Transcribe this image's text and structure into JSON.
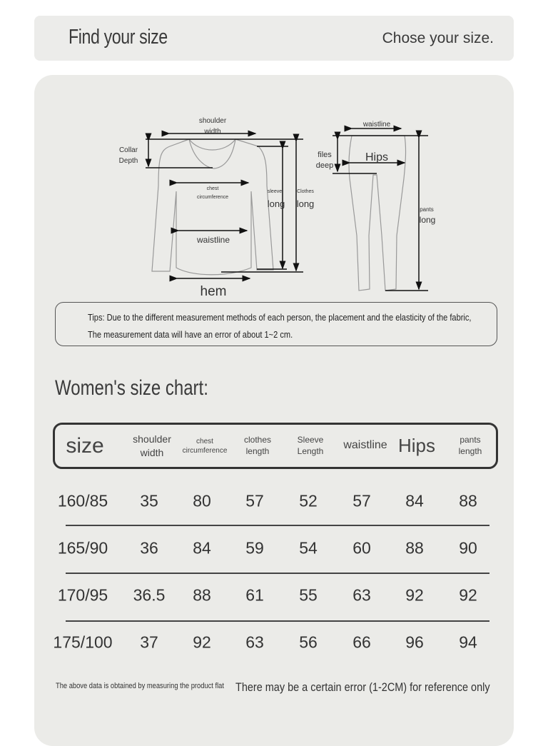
{
  "header": {
    "title": "Find your size",
    "subtitle": "Chose your size."
  },
  "diagram": {
    "top_labels": {
      "shoulder": "shoulder",
      "width": "width",
      "collar": "Collar",
      "depth": "Depth",
      "chest": "chest",
      "circumference": "circumference",
      "sleeve": "sleeve",
      "sleeve_long": "long",
      "clothes": "Clothes",
      "clothes_long": "long",
      "waistline": "waistline",
      "hem": "hem"
    },
    "pants_labels": {
      "waistline": "waistline",
      "files": "files",
      "deep": "deep",
      "hips": "Hips",
      "pants": "pants",
      "pants_long": "long"
    }
  },
  "tips": {
    "line1": "Tips: Due to the different measurement methods of each person, the placement and the elasticity of the fabric,",
    "line2": "The measurement data will have an error of about 1~2 cm."
  },
  "size_chart": {
    "title": "Women's size chart:",
    "columns": [
      "size",
      "shoulder\nwidth",
      "chest\ncircumference",
      "clothes\nlength",
      "Sleeve\nLength",
      "waistline",
      "Hips",
      "pants length"
    ],
    "rows": [
      [
        "160/85",
        "35",
        "80",
        "57",
        "52",
        "57",
        "84",
        "88"
      ],
      [
        "165/90",
        "36",
        "84",
        "59",
        "54",
        "60",
        "88",
        "90"
      ],
      [
        "170/95",
        "36.5",
        "88",
        "61",
        "55",
        "63",
        "92",
        "92"
      ],
      [
        "175/100",
        "37",
        "92",
        "63",
        "56",
        "66",
        "96",
        "94"
      ]
    ]
  },
  "footer": {
    "note1": "The above data is obtained by measuring the product flat",
    "note2": "There may be a certain error (1-2CM) for reference only"
  }
}
